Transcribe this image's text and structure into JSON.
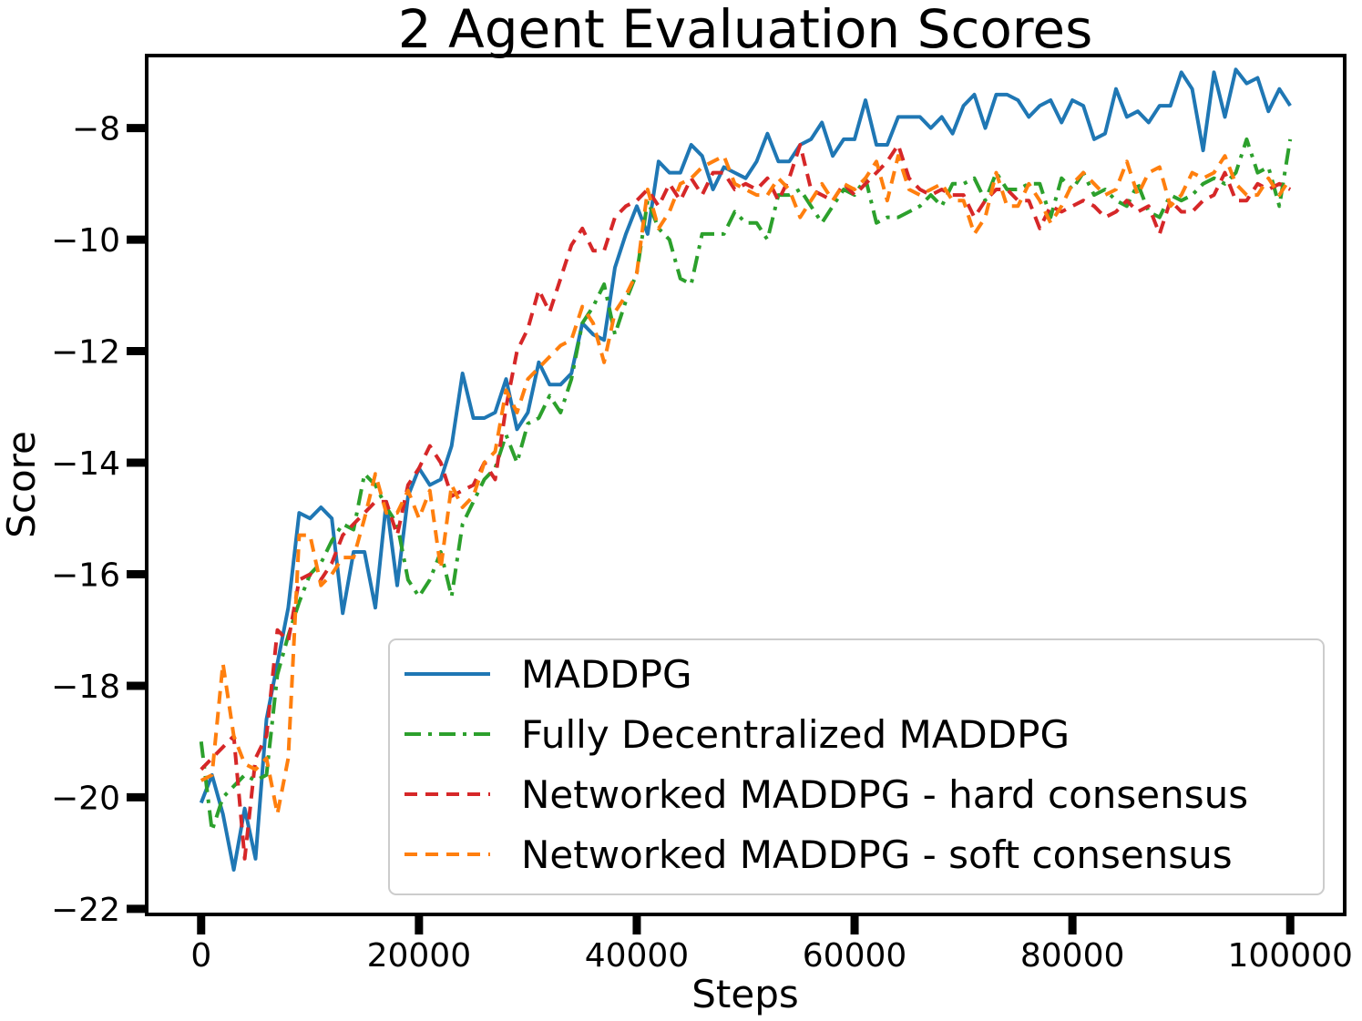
{
  "chart_data": {
    "type": "line",
    "title": "2 Agent Evaluation Scores",
    "xlabel": "Steps",
    "ylabel": "Score",
    "xlim": [
      -5000,
      105000
    ],
    "ylim": [
      -22.1,
      -6.7
    ],
    "xticks": [
      0,
      20000,
      40000,
      60000,
      80000,
      100000
    ],
    "xtick_labels": [
      "0",
      "20000",
      "40000",
      "60000",
      "80000",
      "100000"
    ],
    "yticks": [
      -22,
      -20,
      -18,
      -16,
      -14,
      -12,
      -10,
      -8
    ],
    "ytick_labels": [
      "−22",
      "−20",
      "−18",
      "−16",
      "−14",
      "−12",
      "−10",
      "−8"
    ],
    "grid": false,
    "legend_position": "lower-right",
    "x_start": 0,
    "x_step": 1000,
    "series": [
      {
        "name": "MADDPG",
        "color": "#1f77b4",
        "style": "solid",
        "values": [
          -20.1,
          -19.6,
          -20.3,
          -21.3,
          -20.2,
          -21.1,
          -18.6,
          -17.6,
          -16.6,
          -14.9,
          -15.0,
          -14.8,
          -15.0,
          -16.7,
          -15.6,
          -15.6,
          -16.6,
          -14.7,
          -16.2,
          -14.6,
          -14.1,
          -14.4,
          -14.3,
          -13.7,
          -12.4,
          -13.2,
          -13.2,
          -13.1,
          -12.5,
          -13.4,
          -13.1,
          -12.2,
          -12.6,
          -12.6,
          -12.4,
          -11.5,
          -11.7,
          -11.8,
          -10.5,
          -9.9,
          -9.4,
          -9.9,
          -8.6,
          -8.8,
          -8.8,
          -8.3,
          -8.5,
          -9.1,
          -8.7,
          -8.8,
          -8.9,
          -8.6,
          -8.1,
          -8.6,
          -8.6,
          -8.3,
          -8.2,
          -7.9,
          -8.5,
          -8.2,
          -8.2,
          -7.5,
          -8.3,
          -8.3,
          -7.8,
          -7.8,
          -7.8,
          -8.0,
          -7.8,
          -8.1,
          -7.6,
          -7.4,
          -8.0,
          -7.4,
          -7.4,
          -7.5,
          -7.8,
          -7.6,
          -7.5,
          -7.9,
          -7.5,
          -7.6,
          -8.2,
          -8.1,
          -7.3,
          -7.8,
          -7.7,
          -7.9,
          -7.6,
          -7.6,
          -7.0,
          -7.3,
          -8.4,
          -7.0,
          -7.8,
          -6.95,
          -7.2,
          -7.1,
          -7.7,
          -7.3,
          -7.6
        ]
      },
      {
        "name": "Fully Decentralized MADDPG",
        "color": "#2ca02c",
        "style": "dashdot",
        "values": [
          -19.0,
          -20.6,
          -20.0,
          -19.8,
          -19.6,
          -19.7,
          -19.6,
          -17.8,
          -17.1,
          -16.5,
          -16.0,
          -15.8,
          -15.4,
          -15.1,
          -15.2,
          -14.2,
          -14.4,
          -14.8,
          -15.1,
          -16.1,
          -16.4,
          -16.1,
          -15.6,
          -16.4,
          -15.1,
          -14.7,
          -14.3,
          -14.1,
          -13.5,
          -14.0,
          -13.3,
          -13.2,
          -12.8,
          -13.1,
          -12.5,
          -11.5,
          -11.2,
          -10.8,
          -11.7,
          -11.1,
          -10.6,
          -9.3,
          -9.8,
          -10.0,
          -10.7,
          -10.8,
          -9.9,
          -9.9,
          -9.9,
          -9.5,
          -9.7,
          -9.7,
          -10.0,
          -9.2,
          -9.2,
          -9.1,
          -9.4,
          -9.7,
          -9.4,
          -9.1,
          -9.2,
          -8.9,
          -9.7,
          -9.6,
          -9.6,
          -9.5,
          -9.4,
          -9.2,
          -9.4,
          -9.0,
          -9.0,
          -8.9,
          -9.3,
          -8.8,
          -9.1,
          -9.1,
          -9.0,
          -9.0,
          -9.6,
          -8.9,
          -9.1,
          -8.8,
          -9.2,
          -9.1,
          -9.3,
          -9.4,
          -9.0,
          -9.5,
          -9.6,
          -9.2,
          -9.3,
          -9.2,
          -9.0,
          -8.9,
          -9.0,
          -8.8,
          -8.2,
          -8.8,
          -8.7,
          -9.4,
          -8.2
        ]
      },
      {
        "name": "Networked MADDPG - hard consensus",
        "color": "#d62728",
        "style": "dashed",
        "values": [
          -19.5,
          -19.3,
          -19.1,
          -18.9,
          -21.1,
          -19.3,
          -18.9,
          -17.0,
          -17.2,
          -16.1,
          -16.0,
          -16.1,
          -15.8,
          -15.3,
          -15.1,
          -14.9,
          -14.7,
          -14.7,
          -15.3,
          -14.4,
          -14.1,
          -13.7,
          -14.0,
          -14.6,
          -14.5,
          -14.4,
          -14.0,
          -14.3,
          -13.0,
          -12.0,
          -11.6,
          -10.9,
          -11.3,
          -10.7,
          -10.1,
          -9.8,
          -10.2,
          -10.2,
          -9.6,
          -9.4,
          -9.3,
          -9.1,
          -9.4,
          -9.0,
          -9.3,
          -8.9,
          -9.2,
          -8.8,
          -8.8,
          -9.1,
          -9.0,
          -9.1,
          -8.9,
          -9.3,
          -8.9,
          -8.3,
          -9.1,
          -9.2,
          -9.3,
          -9.0,
          -9.2,
          -9.0,
          -8.8,
          -8.6,
          -8.3,
          -8.9,
          -9.1,
          -9.2,
          -9.1,
          -9.2,
          -9.2,
          -9.6,
          -9.3,
          -9.1,
          -9.1,
          -9.3,
          -9.3,
          -9.8,
          -9.4,
          -9.5,
          -9.4,
          -9.3,
          -9.4,
          -9.6,
          -9.5,
          -9.3,
          -9.5,
          -9.4,
          -9.9,
          -9.3,
          -9.5,
          -9.5,
          -9.3,
          -9.2,
          -8.8,
          -9.3,
          -9.3,
          -9.0,
          -9.1,
          -9.0,
          -9.1
        ]
      },
      {
        "name": "Networked MADDPG - soft consensus",
        "color": "#ff7f0e",
        "style": "dashed",
        "values": [
          -19.7,
          -19.6,
          -17.6,
          -18.9,
          -19.4,
          -19.5,
          -19.3,
          -20.3,
          -19.3,
          -15.3,
          -15.3,
          -16.2,
          -16.0,
          -15.7,
          -15.7,
          -15.0,
          -14.2,
          -14.9,
          -14.9,
          -14.5,
          -15.0,
          -14.5,
          -15.9,
          -14.4,
          -14.8,
          -14.6,
          -14.0,
          -13.8,
          -12.7,
          -13.1,
          -12.5,
          -12.3,
          -12.1,
          -11.9,
          -11.8,
          -11.2,
          -11.5,
          -12.2,
          -11.3,
          -11.0,
          -10.6,
          -9.1,
          -9.8,
          -9.5,
          -9.0,
          -8.9,
          -8.7,
          -8.6,
          -8.5,
          -9.0,
          -9.1,
          -9.2,
          -9.2,
          -8.9,
          -9.1,
          -9.6,
          -9.3,
          -9.0,
          -9.3,
          -9.0,
          -9.1,
          -8.9,
          -8.6,
          -9.3,
          -8.5,
          -9.1,
          -9.2,
          -9.1,
          -9.0,
          -9.3,
          -9.3,
          -9.9,
          -9.6,
          -8.8,
          -9.4,
          -9.4,
          -9.0,
          -9.3,
          -9.7,
          -9.4,
          -9.0,
          -8.8,
          -9.0,
          -9.2,
          -9.1,
          -8.6,
          -9.2,
          -8.8,
          -8.7,
          -9.4,
          -9.2,
          -8.8,
          -8.9,
          -8.8,
          -8.5,
          -9.0,
          -9.2,
          -9.2,
          -8.9,
          -9.2,
          -8.9
        ]
      }
    ]
  }
}
